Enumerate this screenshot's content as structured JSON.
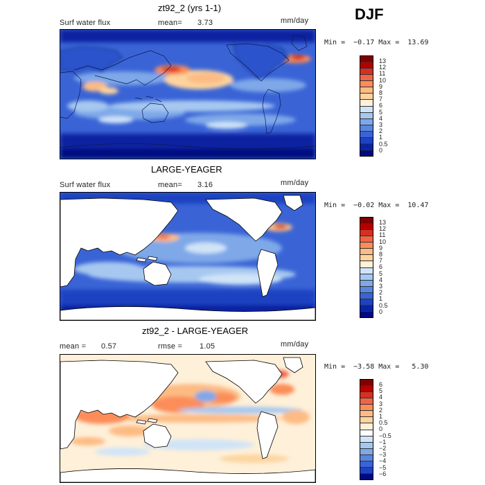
{
  "season": "DJF",
  "panels": [
    {
      "title": "zt92_2 (yrs 1-1)",
      "left_label": "Surf water flux",
      "stat_label": "mean=",
      "stat_value": "3.73",
      "stat2_label": "",
      "stat2_value": "",
      "units": "mm/day",
      "minmax": "Min =  −0.17 Max =  13.69",
      "field": "flux_model",
      "land_masked": false,
      "colorbar_labels": [
        "13",
        "12",
        "11",
        "10",
        "9",
        "8",
        "7",
        "6",
        "5",
        "4",
        "3",
        "2",
        "1",
        "0.5",
        "0"
      ],
      "colorbar_colors": [
        "#7f0000",
        "#b30000",
        "#d7301f",
        "#ef6548",
        "#fc8d59",
        "#fdbb84",
        "#fdd49e",
        "#fef0d9",
        "#d0e4f7",
        "#a6c8f0",
        "#7ea8e8",
        "#5a86e0",
        "#3a64d6",
        "#1f42c2",
        "#0a24a0",
        "#000a80"
      ]
    },
    {
      "title": "LARGE-YEAGER",
      "left_label": "Surf water flux",
      "stat_label": "mean=",
      "stat_value": "3.16",
      "stat2_label": "",
      "stat2_value": "",
      "units": "mm/day",
      "minmax": "Min =  −0.02 Max =  10.47",
      "field": "flux_obs",
      "land_masked": true,
      "colorbar_labels": [
        "13",
        "12",
        "11",
        "10",
        "9",
        "8",
        "7",
        "6",
        "5",
        "4",
        "3",
        "2",
        "1",
        "0.5",
        "0"
      ],
      "colorbar_colors": [
        "#7f0000",
        "#b30000",
        "#d7301f",
        "#ef6548",
        "#fc8d59",
        "#fdbb84",
        "#fdd49e",
        "#fef0d9",
        "#d0e4f7",
        "#a6c8f0",
        "#7ea8e8",
        "#5a86e0",
        "#3a64d6",
        "#1f42c2",
        "#0a24a0",
        "#000a80"
      ]
    },
    {
      "title": "zt92_2 - LARGE-YEAGER",
      "left_label": "mean =",
      "stat_label": "",
      "stat_value": "0.57",
      "stat2_label": "rmse =",
      "stat2_value": "1.05",
      "units": "mm/day",
      "minmax": "Min =  −3.58 Max =   5.30",
      "field": "flux_diff",
      "land_masked": true,
      "colorbar_labels": [
        "6",
        "5",
        "4",
        "3",
        "2",
        "1",
        "0.5",
        "0",
        "−0.5",
        "−1",
        "−2",
        "−3",
        "−4",
        "−5",
        "−6"
      ],
      "colorbar_colors": [
        "#7f0000",
        "#b30000",
        "#d7301f",
        "#ef6548",
        "#fc8d59",
        "#fdbb84",
        "#fdd49e",
        "#fef0d9",
        "#ffffff",
        "#d0e4f7",
        "#a6c8f0",
        "#7ea8e8",
        "#5a86e0",
        "#3a64d6",
        "#1f42c2",
        "#000a80"
      ]
    }
  ]
}
